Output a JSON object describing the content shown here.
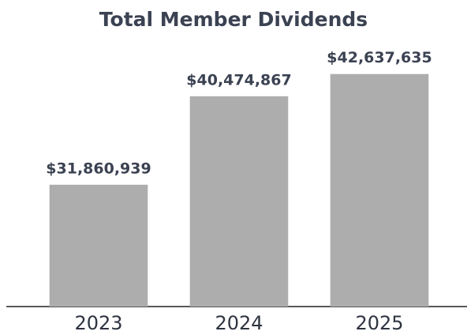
{
  "chart_data": {
    "type": "bar",
    "title": "Total Member Dividends",
    "categories": [
      "2023",
      "2024",
      "2025"
    ],
    "values": [
      31860939,
      40474867,
      42637635
    ],
    "value_labels": [
      "$31,860,939",
      "$40,474,867",
      "$42,637,635"
    ],
    "color": "#adadad",
    "ylim": [
      20000000,
      45000000
    ]
  }
}
